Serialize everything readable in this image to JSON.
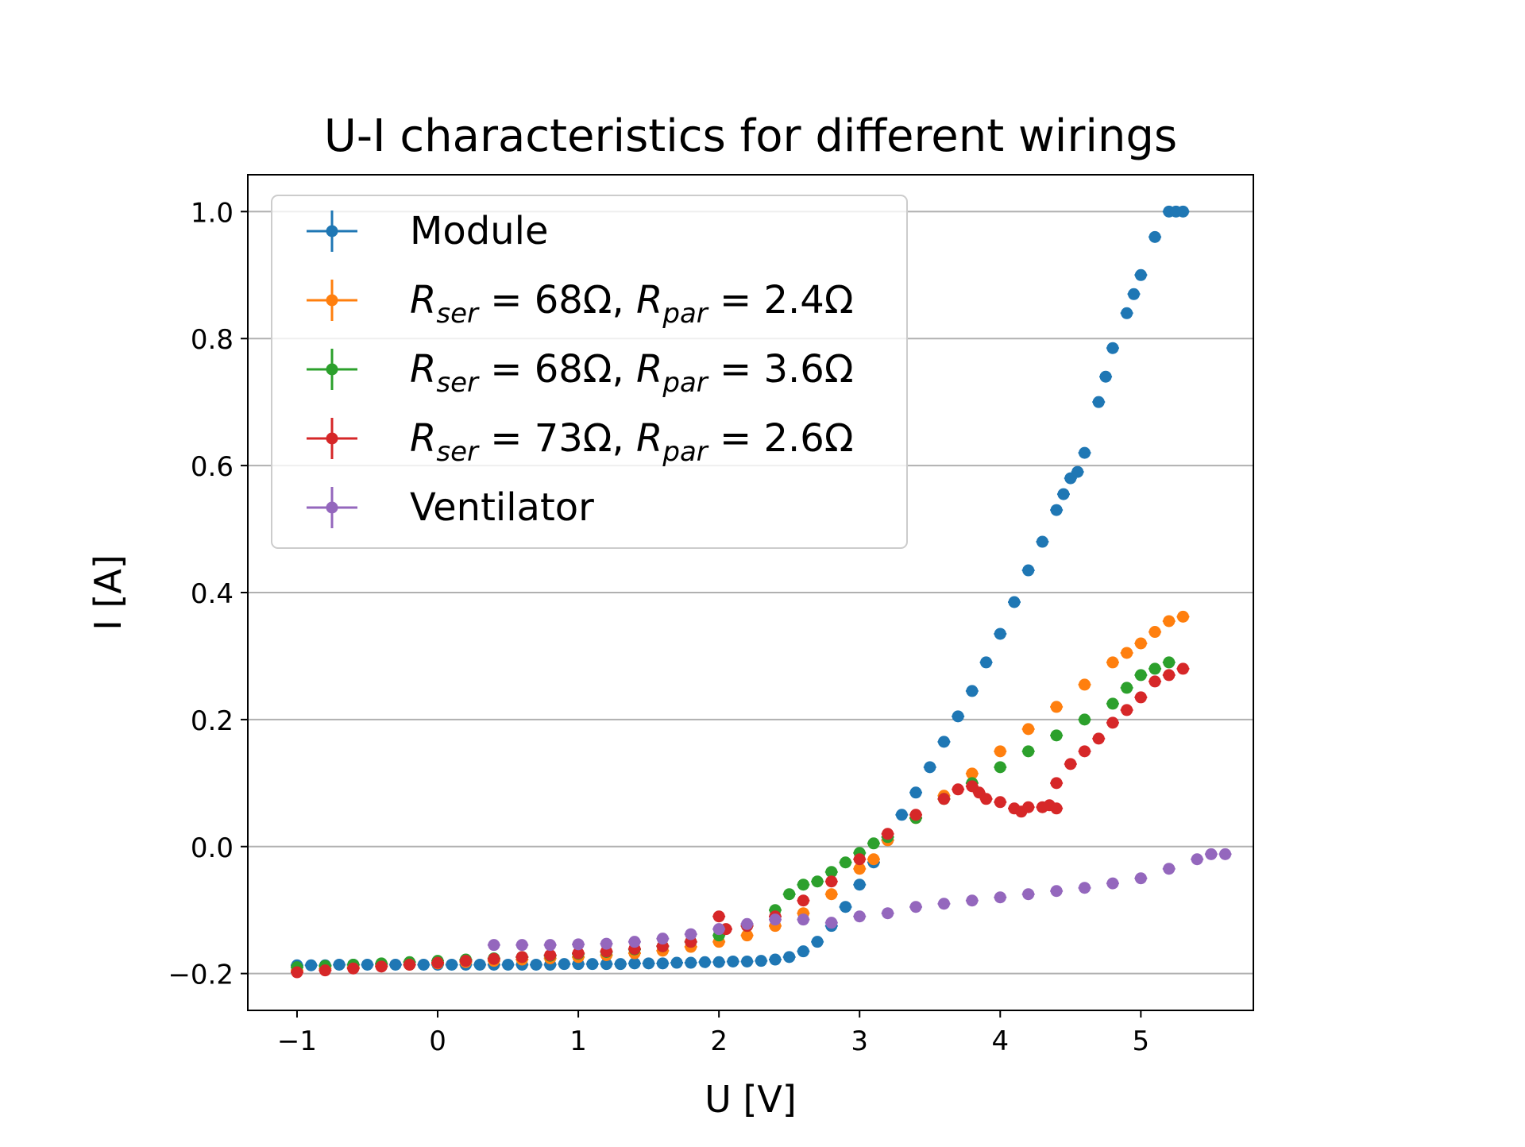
{
  "chart_data": {
    "type": "scatter",
    "title": "U-I characteristics for different wirings",
    "xlabel": "U [V]",
    "ylabel": "I [A]",
    "xlim": [
      -1.35,
      5.8
    ],
    "ylim": [
      -0.258,
      1.058
    ],
    "x_ticks": [
      -1,
      0,
      1,
      2,
      3,
      4,
      5
    ],
    "x_tick_labels": [
      "−1",
      "0",
      "1",
      "2",
      "3",
      "4",
      "5"
    ],
    "y_ticks": [
      -0.2,
      0.0,
      0.2,
      0.4,
      0.6,
      0.8,
      1.0
    ],
    "y_tick_labels": [
      "−0.2",
      "0.0",
      "0.2",
      "0.4",
      "0.6",
      "0.8",
      "1.0"
    ],
    "grid": "horizontal",
    "legend_position": "top-left",
    "series": [
      {
        "name": "Module",
        "legend": {
          "text": "Module"
        },
        "color": "#1f77b4",
        "points": [
          [
            -1.0,
            -0.187
          ],
          [
            -0.9,
            -0.187
          ],
          [
            -0.8,
            -0.187
          ],
          [
            -0.7,
            -0.186
          ],
          [
            -0.6,
            -0.186
          ],
          [
            -0.5,
            -0.186
          ],
          [
            -0.4,
            -0.186
          ],
          [
            -0.3,
            -0.186
          ],
          [
            -0.2,
            -0.186
          ],
          [
            -0.1,
            -0.186
          ],
          [
            0.0,
            -0.186
          ],
          [
            0.1,
            -0.186
          ],
          [
            0.2,
            -0.186
          ],
          [
            0.3,
            -0.186
          ],
          [
            0.4,
            -0.186
          ],
          [
            0.5,
            -0.186
          ],
          [
            0.6,
            -0.186
          ],
          [
            0.7,
            -0.186
          ],
          [
            0.8,
            -0.186
          ],
          [
            0.9,
            -0.185
          ],
          [
            1.0,
            -0.185
          ],
          [
            1.1,
            -0.185
          ],
          [
            1.2,
            -0.185
          ],
          [
            1.3,
            -0.185
          ],
          [
            1.4,
            -0.184
          ],
          [
            1.5,
            -0.184
          ],
          [
            1.6,
            -0.184
          ],
          [
            1.7,
            -0.183
          ],
          [
            1.8,
            -0.183
          ],
          [
            1.9,
            -0.182
          ],
          [
            2.0,
            -0.182
          ],
          [
            2.1,
            -0.181
          ],
          [
            2.2,
            -0.181
          ],
          [
            2.3,
            -0.18
          ],
          [
            2.4,
            -0.178
          ],
          [
            2.5,
            -0.174
          ],
          [
            2.6,
            -0.165
          ],
          [
            2.7,
            -0.15
          ],
          [
            2.8,
            -0.125
          ],
          [
            2.9,
            -0.095
          ],
          [
            3.0,
            -0.06
          ],
          [
            3.1,
            -0.025
          ],
          [
            3.2,
            0.01
          ],
          [
            3.3,
            0.05
          ],
          [
            3.4,
            0.085
          ],
          [
            3.5,
            0.125
          ],
          [
            3.6,
            0.165
          ],
          [
            3.7,
            0.205
          ],
          [
            3.8,
            0.245
          ],
          [
            3.9,
            0.29
          ],
          [
            4.0,
            0.335
          ],
          [
            4.1,
            0.385
          ],
          [
            4.2,
            0.435
          ],
          [
            4.3,
            0.48
          ],
          [
            4.4,
            0.53
          ],
          [
            4.45,
            0.555
          ],
          [
            4.5,
            0.58
          ],
          [
            4.55,
            0.59
          ],
          [
            4.6,
            0.62
          ],
          [
            4.7,
            0.7
          ],
          [
            4.75,
            0.74
          ],
          [
            4.8,
            0.785
          ],
          [
            4.9,
            0.84
          ],
          [
            4.95,
            0.87
          ],
          [
            5.0,
            0.9
          ],
          [
            5.1,
            0.96
          ],
          [
            5.2,
            1.0
          ],
          [
            5.25,
            1.0
          ],
          [
            5.3,
            1.0
          ]
        ]
      },
      {
        "name": "R_ser = 68Ω, R_par = 2.4Ω",
        "legend": {
          "R": "R",
          "sub1": "ser",
          "eq1": " = 68Ω, ",
          "sub2": "par",
          "eq2": " = 2.4Ω"
        },
        "color": "#ff7f0e",
        "points": [
          [
            -1.0,
            -0.195
          ],
          [
            -0.8,
            -0.192
          ],
          [
            -0.6,
            -0.19
          ],
          [
            -0.4,
            -0.188
          ],
          [
            -0.2,
            -0.186
          ],
          [
            0.0,
            -0.184
          ],
          [
            0.2,
            -0.182
          ],
          [
            0.4,
            -0.18
          ],
          [
            0.6,
            -0.178
          ],
          [
            0.8,
            -0.176
          ],
          [
            1.0,
            -0.174
          ],
          [
            1.2,
            -0.171
          ],
          [
            1.4,
            -0.168
          ],
          [
            1.6,
            -0.164
          ],
          [
            1.8,
            -0.158
          ],
          [
            2.0,
            -0.15
          ],
          [
            2.2,
            -0.14
          ],
          [
            2.4,
            -0.125
          ],
          [
            2.6,
            -0.105
          ],
          [
            2.8,
            -0.075
          ],
          [
            3.0,
            -0.035
          ],
          [
            3.1,
            -0.02
          ],
          [
            3.2,
            0.01
          ],
          [
            3.4,
            0.045
          ],
          [
            3.6,
            0.08
          ],
          [
            3.8,
            0.115
          ],
          [
            4.0,
            0.15
          ],
          [
            4.2,
            0.185
          ],
          [
            4.4,
            0.22
          ],
          [
            4.6,
            0.255
          ],
          [
            4.8,
            0.29
          ],
          [
            4.9,
            0.305
          ],
          [
            5.0,
            0.32
          ],
          [
            5.1,
            0.338
          ],
          [
            5.2,
            0.355
          ],
          [
            5.3,
            0.362
          ]
        ]
      },
      {
        "name": "R_ser = 68Ω, R_par = 3.6Ω",
        "legend": {
          "R": "R",
          "sub1": "ser",
          "eq1": " = 68Ω, ",
          "sub2": "par",
          "eq2": " = 3.6Ω"
        },
        "color": "#2ca02c",
        "points": [
          [
            -1.0,
            -0.19
          ],
          [
            -0.8,
            -0.188
          ],
          [
            -0.6,
            -0.186
          ],
          [
            -0.4,
            -0.184
          ],
          [
            -0.2,
            -0.182
          ],
          [
            0.0,
            -0.18
          ],
          [
            0.2,
            -0.178
          ],
          [
            0.4,
            -0.176
          ],
          [
            0.6,
            -0.174
          ],
          [
            0.8,
            -0.172
          ],
          [
            1.0,
            -0.169
          ],
          [
            1.2,
            -0.166
          ],
          [
            1.4,
            -0.162
          ],
          [
            1.6,
            -0.157
          ],
          [
            1.8,
            -0.15
          ],
          [
            2.0,
            -0.14
          ],
          [
            2.2,
            -0.125
          ],
          [
            2.4,
            -0.1
          ],
          [
            2.5,
            -0.075
          ],
          [
            2.6,
            -0.06
          ],
          [
            2.7,
            -0.055
          ],
          [
            2.8,
            -0.04
          ],
          [
            2.9,
            -0.025
          ],
          [
            3.0,
            -0.01
          ],
          [
            3.1,
            0.005
          ],
          [
            3.2,
            0.015
          ],
          [
            3.4,
            0.045
          ],
          [
            3.6,
            0.075
          ],
          [
            3.8,
            0.1
          ],
          [
            4.0,
            0.125
          ],
          [
            4.2,
            0.15
          ],
          [
            4.4,
            0.175
          ],
          [
            4.6,
            0.2
          ],
          [
            4.8,
            0.225
          ],
          [
            4.9,
            0.25
          ],
          [
            5.0,
            0.27
          ],
          [
            5.1,
            0.28
          ],
          [
            5.2,
            0.29
          ]
        ]
      },
      {
        "name": "R_ser = 73Ω, R_par = 2.6Ω",
        "legend": {
          "R": "R",
          "sub1": "ser",
          "eq1": " = 73Ω, ",
          "sub2": "par",
          "eq2": " = 2.6Ω"
        },
        "color": "#d62728",
        "points": [
          [
            -1.0,
            -0.198
          ],
          [
            -0.8,
            -0.195
          ],
          [
            -0.6,
            -0.192
          ],
          [
            -0.4,
            -0.189
          ],
          [
            -0.2,
            -0.186
          ],
          [
            0.0,
            -0.183
          ],
          [
            0.2,
            -0.18
          ],
          [
            0.4,
            -0.177
          ],
          [
            0.6,
            -0.174
          ],
          [
            0.8,
            -0.171
          ],
          [
            1.0,
            -0.168
          ],
          [
            1.2,
            -0.165
          ],
          [
            1.4,
            -0.161
          ],
          [
            1.6,
            -0.157
          ],
          [
            1.8,
            -0.15
          ],
          [
            2.0,
            -0.11
          ],
          [
            2.05,
            -0.13
          ],
          [
            2.2,
            -0.125
          ],
          [
            2.4,
            -0.11
          ],
          [
            2.6,
            -0.085
          ],
          [
            2.8,
            -0.055
          ],
          [
            3.0,
            -0.02
          ],
          [
            3.2,
            0.02
          ],
          [
            3.4,
            0.05
          ],
          [
            3.6,
            0.075
          ],
          [
            3.7,
            0.09
          ],
          [
            3.8,
            0.095
          ],
          [
            3.85,
            0.085
          ],
          [
            3.9,
            0.075
          ],
          [
            4.0,
            0.07
          ],
          [
            4.1,
            0.06
          ],
          [
            4.15,
            0.055
          ],
          [
            4.2,
            0.062
          ],
          [
            4.3,
            0.062
          ],
          [
            4.35,
            0.065
          ],
          [
            4.4,
            0.06
          ],
          [
            4.4,
            0.1
          ],
          [
            4.5,
            0.13
          ],
          [
            4.6,
            0.15
          ],
          [
            4.7,
            0.17
          ],
          [
            4.8,
            0.195
          ],
          [
            4.9,
            0.215
          ],
          [
            5.0,
            0.235
          ],
          [
            5.1,
            0.26
          ],
          [
            5.2,
            0.27
          ],
          [
            5.3,
            0.28
          ]
        ]
      },
      {
        "name": "Ventilator",
        "legend": {
          "text": "Ventilator"
        },
        "color": "#9467bd",
        "points": [
          [
            0.4,
            -0.155
          ],
          [
            0.6,
            -0.155
          ],
          [
            0.8,
            -0.155
          ],
          [
            1.0,
            -0.154
          ],
          [
            1.2,
            -0.153
          ],
          [
            1.4,
            -0.15
          ],
          [
            1.6,
            -0.145
          ],
          [
            1.8,
            -0.138
          ],
          [
            2.0,
            -0.13
          ],
          [
            2.2,
            -0.122
          ],
          [
            2.4,
            -0.115
          ],
          [
            2.6,
            -0.115
          ],
          [
            2.8,
            -0.12
          ],
          [
            3.0,
            -0.11
          ],
          [
            3.2,
            -0.105
          ],
          [
            3.4,
            -0.095
          ],
          [
            3.6,
            -0.09
          ],
          [
            3.8,
            -0.085
          ],
          [
            4.0,
            -0.08
          ],
          [
            4.2,
            -0.075
          ],
          [
            4.4,
            -0.07
          ],
          [
            4.6,
            -0.065
          ],
          [
            4.8,
            -0.058
          ],
          [
            5.0,
            -0.05
          ],
          [
            5.2,
            -0.035
          ],
          [
            5.4,
            -0.02
          ],
          [
            5.5,
            -0.012
          ],
          [
            5.6,
            -0.012
          ]
        ]
      }
    ]
  }
}
